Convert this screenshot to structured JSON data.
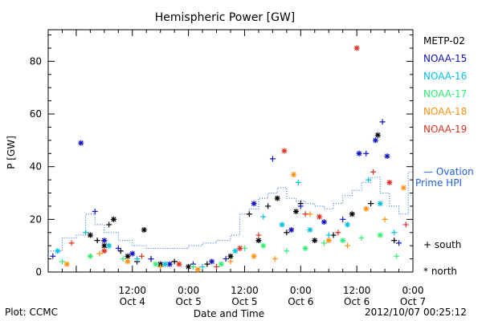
{
  "chart_data": {
    "type": "scatter",
    "title": "Hemispheric Power [GW]",
    "ylabel": "P [GW]",
    "xlabel": "Date and Time",
    "xlim": [
      "2012-10-03 18:00",
      "2012-10-07 00:00"
    ],
    "ylim": [
      0,
      92
    ],
    "yticks": [
      0,
      20,
      40,
      60,
      80
    ],
    "xticks": [
      {
        "time": "2012-10-04 12:00",
        "line1": "12:00",
        "line2": "Oct 4"
      },
      {
        "time": "2012-10-05 00:00",
        "line1": "0:00",
        "line2": "Oct 5"
      },
      {
        "time": "2012-10-05 12:00",
        "line1": "12:00",
        "line2": "Oct 5"
      },
      {
        "time": "2012-10-06 00:00",
        "line1": "0:00",
        "line2": "Oct 6"
      },
      {
        "time": "2012-10-06 12:00",
        "line1": "12:00",
        "line2": "Oct 6"
      },
      {
        "time": "2012-10-07 00:00",
        "line1": "0:00",
        "line2": "Oct 7"
      }
    ],
    "marker_legend": [
      {
        "label": "+ south",
        "marker": "+"
      },
      {
        "label": "* north",
        "marker": "*"
      }
    ],
    "series": [
      {
        "name": "METP-02",
        "color": "#000000",
        "marker": "mixed",
        "points": [
          [
            "2012-10-04 03:00",
            14
          ],
          [
            "2012-10-04 04:30",
            12
          ],
          [
            "2012-10-04 06:00",
            10
          ],
          [
            "2012-10-04 07:00",
            18
          ],
          [
            "2012-10-04 08:00",
            20
          ],
          [
            "2012-10-04 09:30",
            8
          ],
          [
            "2012-10-04 11:00",
            6
          ],
          [
            "2012-10-04 13:00",
            4
          ],
          [
            "2012-10-04 14:30",
            16
          ],
          [
            "2012-10-04 16:00",
            5
          ],
          [
            "2012-10-04 18:00",
            3
          ],
          [
            "2012-10-04 21:00",
            4
          ],
          [
            "2012-10-05 00:00",
            2
          ],
          [
            "2012-10-05 04:00",
            3
          ],
          [
            "2012-10-05 09:00",
            6
          ],
          [
            "2012-10-05 13:00",
            22
          ],
          [
            "2012-10-05 15:00",
            12
          ],
          [
            "2012-10-05 17:00",
            25
          ],
          [
            "2012-10-05 19:00",
            28
          ],
          [
            "2012-10-05 21:00",
            15
          ],
          [
            "2012-10-05 23:00",
            23
          ],
          [
            "2012-10-06 00:00",
            26
          ],
          [
            "2012-10-06 03:00",
            12
          ],
          [
            "2012-10-06 07:00",
            14
          ],
          [
            "2012-10-06 11:00",
            22
          ],
          [
            "2012-10-06 15:00",
            26
          ],
          [
            "2012-10-06 16:30",
            52
          ],
          [
            "2012-10-06 20:00",
            12
          ]
        ]
      },
      {
        "name": "NOAA-15",
        "color": "#1010c8",
        "marker": "mixed",
        "points": [
          [
            "2012-10-03 19:00",
            6
          ],
          [
            "2012-10-04 01:00",
            49
          ],
          [
            "2012-10-04 04:00",
            23
          ],
          [
            "2012-10-04 06:00",
            12
          ],
          [
            "2012-10-04 09:00",
            9
          ],
          [
            "2012-10-04 12:00",
            7
          ],
          [
            "2012-10-04 16:00",
            5
          ],
          [
            "2012-10-04 20:00",
            3
          ],
          [
            "2012-10-05 01:00",
            3
          ],
          [
            "2012-10-05 05:00",
            4
          ],
          [
            "2012-10-05 08:00",
            5
          ],
          [
            "2012-10-05 14:00",
            26
          ],
          [
            "2012-10-05 18:00",
            43
          ],
          [
            "2012-10-05 22:00",
            16
          ],
          [
            "2012-10-06 00:00",
            25
          ],
          [
            "2012-10-06 05:00",
            19
          ],
          [
            "2012-10-06 09:00",
            20
          ],
          [
            "2012-10-06 12:30",
            45
          ],
          [
            "2012-10-06 14:00",
            45
          ],
          [
            "2012-10-06 16:00",
            50
          ],
          [
            "2012-10-06 17:30",
            57
          ],
          [
            "2012-10-06 18:30",
            44
          ],
          [
            "2012-10-06 21:00",
            11
          ]
        ]
      },
      {
        "name": "NOAA-16",
        "color": "#00c0e0",
        "marker": "mixed",
        "points": [
          [
            "2012-10-03 20:00",
            8
          ],
          [
            "2012-10-04 02:00",
            15
          ],
          [
            "2012-10-04 07:00",
            10
          ],
          [
            "2012-10-04 13:00",
            5
          ],
          [
            "2012-10-04 19:00",
            3
          ],
          [
            "2012-10-05 03:00",
            2
          ],
          [
            "2012-10-05 10:00",
            8
          ],
          [
            "2012-10-05 16:00",
            21
          ],
          [
            "2012-10-05 20:00",
            18
          ],
          [
            "2012-10-05 23:30",
            34
          ],
          [
            "2012-10-06 02:00",
            16
          ],
          [
            "2012-10-06 06:00",
            14
          ],
          [
            "2012-10-06 10:00",
            18
          ],
          [
            "2012-10-06 14:30",
            35
          ],
          [
            "2012-10-06 17:00",
            26
          ],
          [
            "2012-10-06 20:00",
            15
          ]
        ]
      },
      {
        "name": "NOAA-17",
        "color": "#30f070",
        "marker": "mixed",
        "points": [
          [
            "2012-10-03 21:00",
            4
          ],
          [
            "2012-10-04 03:00",
            6
          ],
          [
            "2012-10-04 10:00",
            5
          ],
          [
            "2012-10-04 17:00",
            3
          ],
          [
            "2012-10-05 01:00",
            2
          ],
          [
            "2012-10-05 07:00",
            3
          ],
          [
            "2012-10-05 12:00",
            9
          ],
          [
            "2012-10-05 16:00",
            10
          ],
          [
            "2012-10-05 21:00",
            8
          ],
          [
            "2012-10-06 01:00",
            9
          ],
          [
            "2012-10-06 05:00",
            11
          ],
          [
            "2012-10-06 09:00",
            12
          ],
          [
            "2012-10-06 13:00",
            13
          ],
          [
            "2012-10-06 17:00",
            14
          ],
          [
            "2012-10-06 20:30",
            6
          ]
        ]
      },
      {
        "name": "NOAA-18",
        "color": "#ff9010",
        "marker": "mixed",
        "points": [
          [
            "2012-10-03 22:00",
            3
          ],
          [
            "2012-10-04 05:00",
            7
          ],
          [
            "2012-10-04 11:00",
            4
          ],
          [
            "2012-10-04 18:00",
            2
          ],
          [
            "2012-10-05 02:00",
            1
          ],
          [
            "2012-10-05 09:00",
            4
          ],
          [
            "2012-10-05 14:00",
            6
          ],
          [
            "2012-10-05 18:30",
            5
          ],
          [
            "2012-10-05 22:30",
            37
          ],
          [
            "2012-10-06 02:00",
            22
          ],
          [
            "2012-10-06 06:00",
            12
          ],
          [
            "2012-10-06 10:00",
            10
          ],
          [
            "2012-10-06 14:00",
            24
          ],
          [
            "2012-10-06 18:00",
            20
          ],
          [
            "2012-10-06 22:00",
            32
          ]
        ]
      },
      {
        "name": "NOAA-19",
        "color": "#e03020",
        "marker": "mixed",
        "points": [
          [
            "2012-10-03 23:00",
            11
          ],
          [
            "2012-10-04 06:00",
            8
          ],
          [
            "2012-10-04 14:00",
            6
          ],
          [
            "2012-10-04 22:00",
            3
          ],
          [
            "2012-10-05 06:00",
            2
          ],
          [
            "2012-10-05 11:00",
            9
          ],
          [
            "2012-10-05 15:00",
            14
          ],
          [
            "2012-10-05 20:30",
            46
          ],
          [
            "2012-10-06 01:00",
            22
          ],
          [
            "2012-10-06 04:00",
            21
          ],
          [
            "2012-10-06 08:00",
            15
          ],
          [
            "2012-10-06 12:00",
            85
          ],
          [
            "2012-10-06 15:30",
            38
          ],
          [
            "2012-10-06 19:00",
            34
          ],
          [
            "2012-10-06 22:30",
            18
          ]
        ]
      }
    ],
    "model": {
      "name": "— Ovation Prime HPI",
      "color": "#2060e0",
      "style": "dotted-step",
      "points": [
        [
          "2012-10-03 18:00",
          8
        ],
        [
          "2012-10-03 21:00",
          13
        ],
        [
          "2012-10-04 00:00",
          14
        ],
        [
          "2012-10-04 02:00",
          22
        ],
        [
          "2012-10-04 04:00",
          18
        ],
        [
          "2012-10-04 06:00",
          15
        ],
        [
          "2012-10-04 09:00",
          12
        ],
        [
          "2012-10-04 12:00",
          10
        ],
        [
          "2012-10-04 15:00",
          9
        ],
        [
          "2012-10-04 18:00",
          9
        ],
        [
          "2012-10-04 21:00",
          9
        ],
        [
          "2012-10-05 00:00",
          10
        ],
        [
          "2012-10-05 03:00",
          11
        ],
        [
          "2012-10-05 06:00",
          12
        ],
        [
          "2012-10-05 09:00",
          14
        ],
        [
          "2012-10-05 11:00",
          22
        ],
        [
          "2012-10-05 13:00",
          24
        ],
        [
          "2012-10-05 15:00",
          28
        ],
        [
          "2012-10-05 17:00",
          30
        ],
        [
          "2012-10-05 19:00",
          32
        ],
        [
          "2012-10-05 21:00",
          28
        ],
        [
          "2012-10-05 23:00",
          27
        ],
        [
          "2012-10-06 01:00",
          26
        ],
        [
          "2012-10-06 03:00",
          25
        ],
        [
          "2012-10-06 05:00",
          24
        ],
        [
          "2012-10-06 07:00",
          26
        ],
        [
          "2012-10-06 09:00",
          29
        ],
        [
          "2012-10-06 11:00",
          31
        ],
        [
          "2012-10-06 13:00",
          34
        ],
        [
          "2012-10-06 15:00",
          36
        ],
        [
          "2012-10-06 17:00",
          30
        ],
        [
          "2012-10-06 19:00",
          25
        ],
        [
          "2012-10-06 21:00",
          22
        ],
        [
          "2012-10-06 23:00",
          38
        ]
      ]
    }
  },
  "footer": {
    "left": "Plot: CCMC",
    "right": "2012/10/07 00:25:12"
  }
}
